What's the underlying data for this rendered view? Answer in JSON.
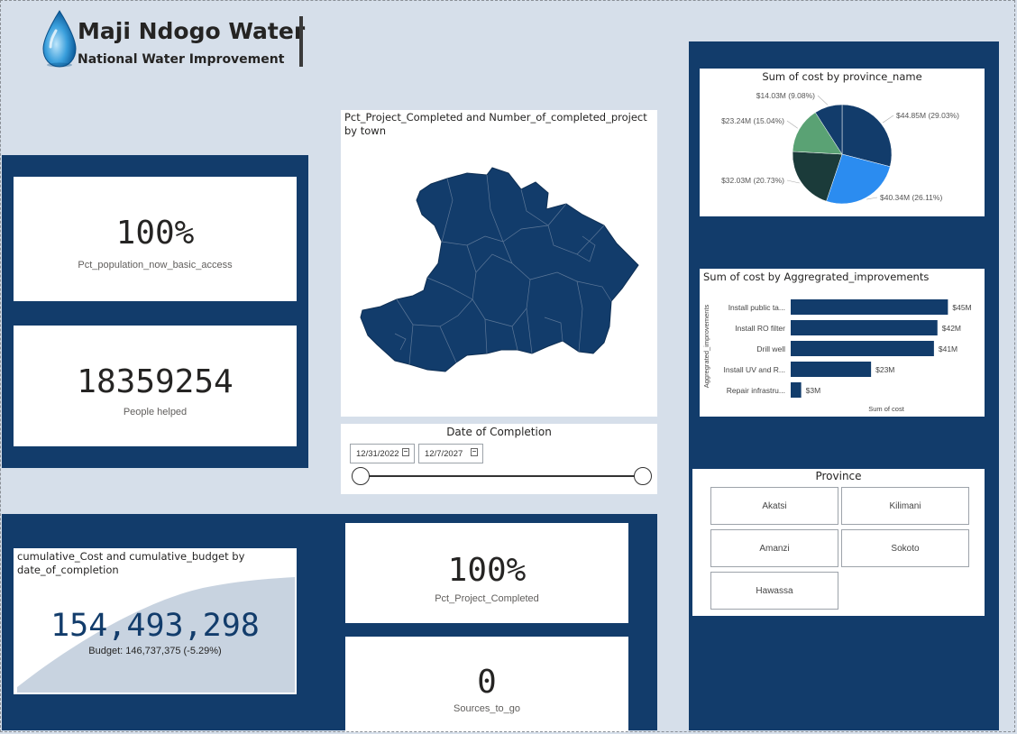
{
  "header": {
    "title": "Maji Ndogo Water",
    "subtitle": "National Water Improvement",
    "logo_icon": "water-drop-icon"
  },
  "kpis": {
    "pct_basic_access": {
      "value": "100%",
      "label": "Pct_population_now_basic_access"
    },
    "people_helped": {
      "value": "18359254",
      "label": "People helped"
    },
    "pct_completed": {
      "value": "100%",
      "label": "Pct_Project_Completed"
    },
    "sources_to_go": {
      "value": "0",
      "label": "Sources_to_go"
    }
  },
  "cumulative": {
    "title": "cumulative_Cost and cumulative_budget by date_of_completion",
    "value": "154,493,298",
    "budget": "Budget: 146,737,375 (-5.29%)"
  },
  "map": {
    "title": "Pct_Project_Completed and Number_of_completed_project by town",
    "fill_color": "#123c6b"
  },
  "date_slicer": {
    "title": "Date of Completion",
    "start": "12/31/2022",
    "end": "12/7/2027",
    "range_fraction": [
      0,
      1
    ]
  },
  "province_slicer": {
    "title": "Province",
    "options": [
      "Akatsi",
      "Kilimani",
      "Amanzi",
      "Sokoto",
      "Hawassa"
    ]
  },
  "colors": {
    "navy": "#123c6b",
    "background": "#d6dfea",
    "pie_green": "#5aa274",
    "pie_blue": "#2b8cf0",
    "pie_dark": "#1b3b3a"
  },
  "chart_data": [
    {
      "type": "pie",
      "title": "Sum of cost by province_name",
      "slices": [
        {
          "value": 44.85,
          "label": "$44.85M (29.03%)",
          "color": "#123c6b"
        },
        {
          "value": 40.34,
          "label": "$40.34M (26.11%)",
          "color": "#2b8cf0"
        },
        {
          "value": 32.03,
          "label": "$32.03M (20.73%)",
          "color": "#1b3b3a"
        },
        {
          "value": 23.24,
          "label": "$23.24M (15.04%)",
          "color": "#5aa274"
        },
        {
          "value": 14.03,
          "label": "$14.03M (9.08%)",
          "color": "#123c6b"
        }
      ]
    },
    {
      "type": "bar",
      "orientation": "horizontal",
      "title": "Sum of cost by Aggregrated_improvements",
      "xlabel": "Sum of cost",
      "ylabel": "Aggregrated_improvements",
      "categories": [
        "Install public ta...",
        "Install RO filter",
        "Drill well",
        "Install UV and R...",
        "Repair infrastru..."
      ],
      "values": [
        45,
        42,
        41,
        23,
        3
      ],
      "data_labels": [
        "$45M",
        "$42M",
        "$41M",
        "$23M",
        "$3M"
      ],
      "xlim": [
        0,
        48
      ]
    }
  ]
}
